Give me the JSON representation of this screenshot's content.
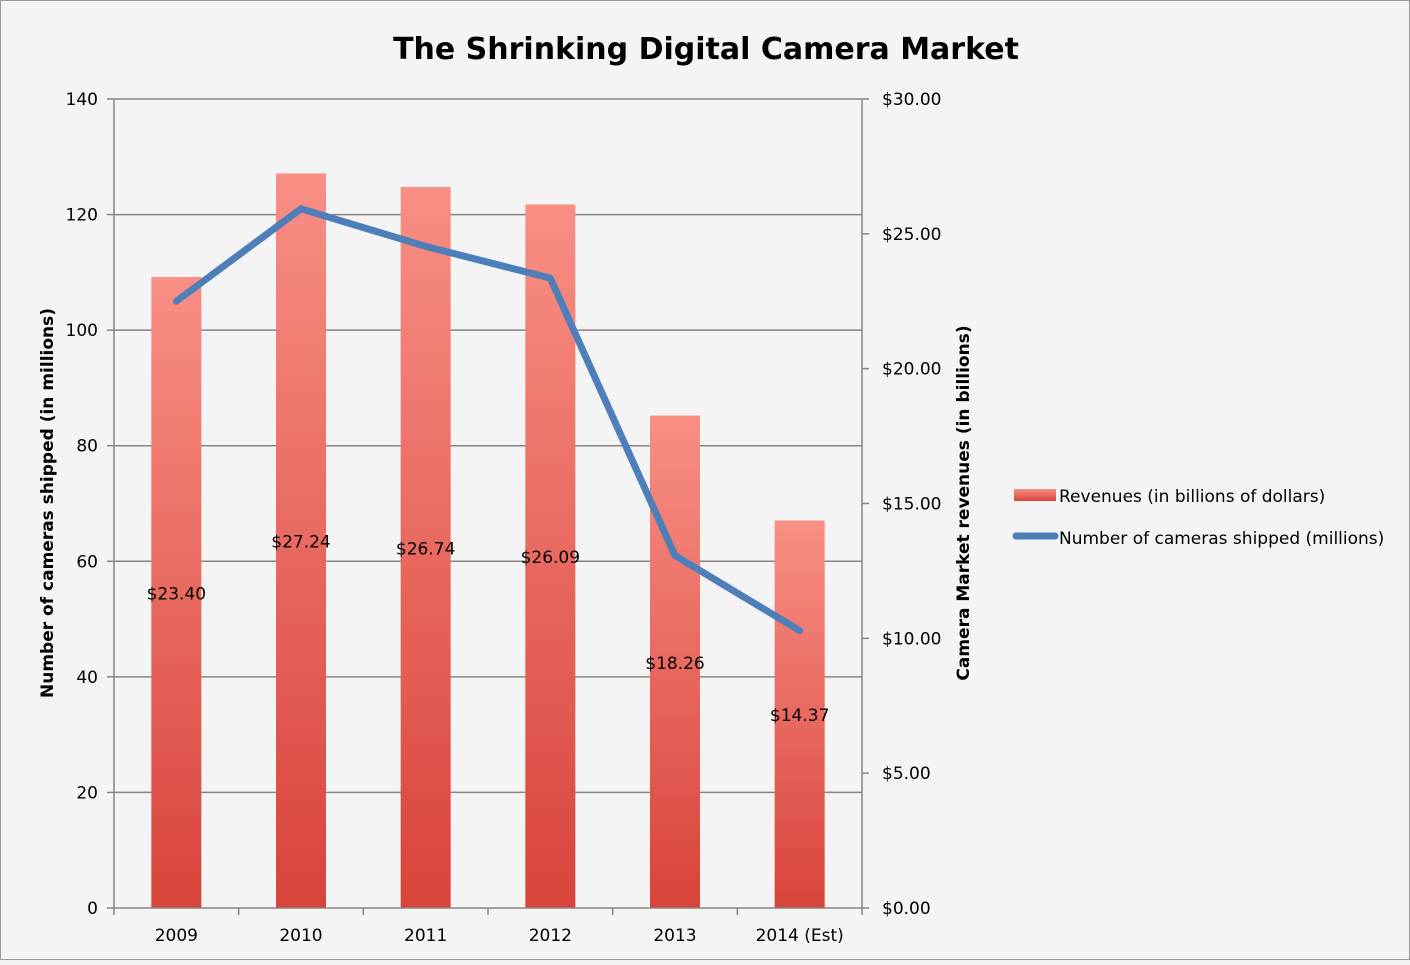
{
  "chart_data": {
    "type": "bar+line",
    "title": "The Shrinking Digital Camera Market",
    "categories": [
      "2009",
      "2010",
      "2011",
      "2012",
      "2013",
      "2014 (Est)"
    ],
    "series": [
      {
        "name": "Revenues (in billions of dollars)",
        "type": "bar",
        "axis": "right",
        "values": [
          23.4,
          27.24,
          26.74,
          26.09,
          18.26,
          14.37
        ],
        "labels": [
          "$23.40",
          "$27.24",
          "$26.74",
          "$26.09",
          "$18.26",
          "$14.37"
        ],
        "color": "#e8584c"
      },
      {
        "name": "Number of cameras shipped (millions)",
        "type": "line",
        "axis": "left",
        "values": [
          105,
          121,
          114.5,
          109,
          61,
          48
        ],
        "color": "#4f7fb8"
      }
    ],
    "ylabel": "Number of cameras shipped (in millions)",
    "y2label": "Camera Market revenues (in billions)",
    "ylim": [
      0,
      140
    ],
    "y2lim": [
      0,
      30
    ],
    "yticks": [
      "0",
      "20",
      "40",
      "60",
      "80",
      "100",
      "120",
      "140"
    ],
    "y2ticks": [
      "$0.00",
      "$5.00",
      "$10.00",
      "$15.00",
      "$20.00",
      "$25.00",
      "$30.00"
    ],
    "grid": true,
    "legend": "right"
  }
}
